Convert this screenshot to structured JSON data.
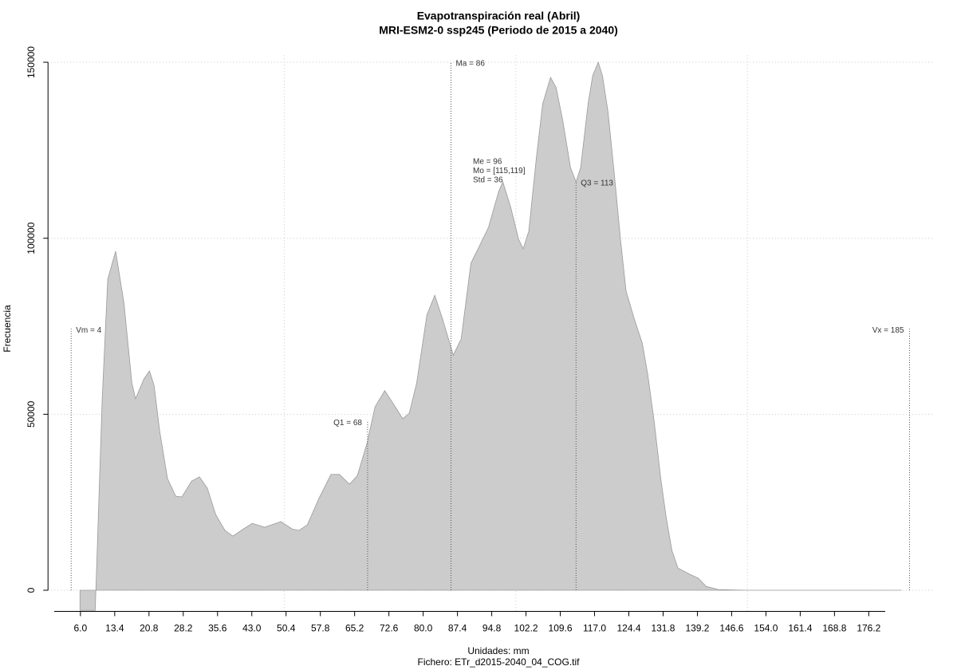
{
  "chart_data": {
    "type": "area",
    "title": "Evapotranspiración real (Abril)",
    "subtitle": "MRI-ESM2-0 ssp245 (Periodo de 2015 a 2040)",
    "x_label": "Unidades: mm",
    "caption": "Fichero: ETr_d2015-2040_04_COG.tif",
    "y_label": "Frecuencia",
    "color": "#cccccc",
    "x": [
      5.9,
      9.2,
      9.33,
      9.68,
      10.7,
      11.9,
      13.6,
      15.4,
      17.1,
      17.9,
      19.7,
      20.9,
      21.9,
      23.1,
      24.8,
      26.6,
      27.9,
      30.0,
      31.7,
      33.4,
      35.2,
      37.2,
      38.9,
      41.2,
      43.1,
      45.8,
      49.3,
      51.7,
      53.2,
      55.0,
      57.5,
      60.1,
      61.9,
      64.1,
      65.8,
      67.9,
      69.6,
      71.7,
      73.4,
      75.6,
      77.0,
      78.6,
      80.8,
      82.5,
      84.2,
      86.5,
      88.2,
      90.3,
      92.0,
      94.1,
      96.3,
      97.2,
      98.9,
      100.6,
      101.6,
      102.8,
      104.4,
      105.8,
      107.5,
      108.7,
      110.1,
      111.8,
      113.0,
      114.0,
      115.6,
      116.6,
      117.8,
      118.7,
      119.9,
      121.3,
      122.6,
      123.8,
      125.6,
      127.3,
      128.5,
      129.9,
      131.3,
      132.5,
      133.7,
      135.0,
      137.6,
      139.4,
      141.1,
      143.7,
      149.7,
      183.3
    ],
    "values": [
      -5700,
      -5700,
      0,
      13600,
      54400,
      88400,
      96300,
      81600,
      58900,
      54400,
      60000,
      62300,
      58200,
      45300,
      31700,
      26700,
      26500,
      31000,
      32200,
      29000,
      21500,
      17000,
      15400,
      17400,
      19000,
      17900,
      19500,
      17400,
      17000,
      18600,
      26100,
      32900,
      32900,
      30100,
      32600,
      41900,
      52100,
      56700,
      53300,
      48700,
      50300,
      58900,
      78200,
      83800,
      77000,
      66800,
      71400,
      92900,
      97400,
      103100,
      113300,
      116000,
      108800,
      99700,
      97000,
      102000,
      122400,
      138200,
      145700,
      142800,
      133700,
      120100,
      116000,
      120100,
      138200,
      146200,
      150000,
      146200,
      136000,
      117800,
      99700,
      85000,
      77000,
      70200,
      61200,
      47600,
      31700,
      20400,
      11300,
      6300,
      4500,
      3400,
      1100,
      200,
      0,
      0
    ],
    "xlim": [
      -1,
      190
    ],
    "ylim": [
      -6000,
      152000
    ],
    "xticks": [
      {
        "value": 6,
        "label": "6.0"
      },
      13.4,
      20.8,
      28.2,
      35.6,
      {
        "value": 43,
        "label": "43.0"
      },
      50.4,
      57.8,
      65.2,
      72.6,
      {
        "value": 80,
        "label": "80.0"
      },
      87.4,
      94.8,
      102.2,
      109.6,
      {
        "value": 117,
        "label": "117.0"
      },
      124.4,
      131.8,
      139.2,
      146.6,
      {
        "value": 154,
        "label": "154.0"
      },
      161.4,
      168.8,
      176.2
    ],
    "yticks": [
      0,
      50000,
      100000,
      150000
    ],
    "xgrid": [
      50,
      100,
      150
    ],
    "grid": true,
    "annotations": [
      {
        "label": "Vm = 4",
        "x": 4,
        "y": 74300
      },
      {
        "label": "Q1 = 68",
        "x": 68,
        "y": 48000
      },
      {
        "label": "Ma = 86",
        "x": 86,
        "y": 150000
      },
      {
        "label": "Q3 = 113",
        "x": 113,
        "y": 116000
      },
      {
        "label": "Vx = 185",
        "x": 185,
        "y": 74300
      }
    ],
    "stats": [
      "Me = 96",
      "Mo = [115,119]",
      "Std = 36"
    ]
  }
}
